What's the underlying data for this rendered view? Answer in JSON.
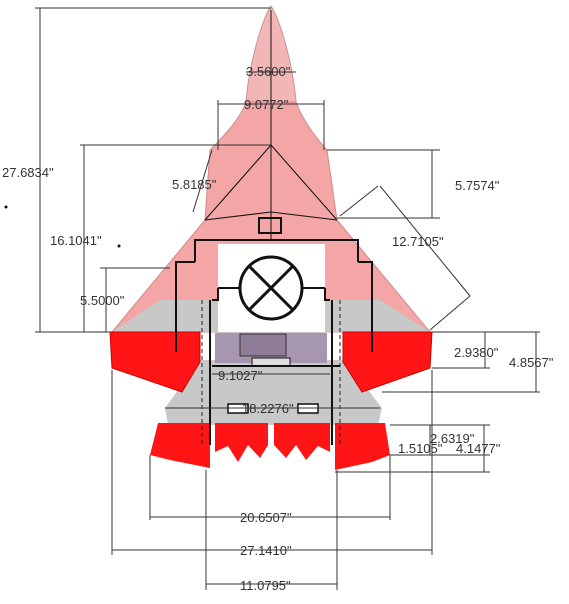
{
  "diagram": {
    "colors": {
      "nose_fill": "#f2b6b6",
      "nose_stroke": "#c99393",
      "wing_fill": "#f4a6a6",
      "body_gray": "#c8c8c8",
      "red": "#ff1515",
      "dark_red": "#c80000",
      "purple": "#a796b0",
      "white_panel": "#ffffff",
      "line": "#333333"
    },
    "dimensions": {
      "nose_width": "3.5600\"",
      "nose_base_width": "9.0772\"",
      "overall_length": "27.6834\"",
      "wing_chord_depth": "16.1041\"",
      "canard_offset": "5.8185\"",
      "canard_drop": "5.7574\"",
      "leading_edge_length": "12.7105\"",
      "wing_root_height": "5.5000\"",
      "tail_offset": "2.9380\"",
      "tail_total": "4.8567\"",
      "mid_body_width": "9.1027\"",
      "tail_span_inner": "18.2276\"",
      "fin_offset_a": "2.6319\"",
      "fin_offset_b": "1.5105\"",
      "fin_offset_c": "4.1477\"",
      "tail_span": "20.6507\"",
      "wingspan": "27.1410\"",
      "fuselage_width": "11.0795\""
    }
  }
}
